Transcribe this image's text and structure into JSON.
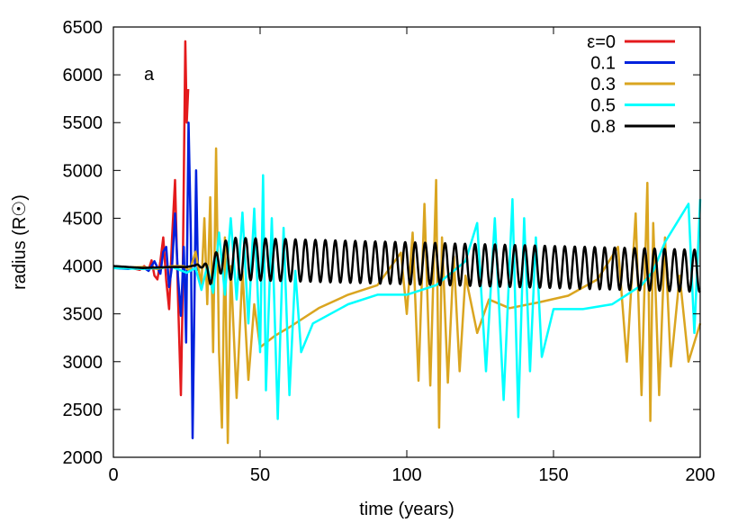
{
  "chart_data": {
    "type": "line",
    "title": "",
    "xlabel": "time (years)",
    "ylabel": "radius (R☉)",
    "xlim": [
      0,
      200
    ],
    "ylim": [
      2000,
      6500
    ],
    "xticks": [
      "0",
      "50",
      "100",
      "150",
      "200"
    ],
    "yticks": [
      "2000",
      "2500",
      "3000",
      "3500",
      "4000",
      "4500",
      "5000",
      "5500",
      "6000",
      "6500"
    ],
    "xtick_values": [
      0,
      50,
      100,
      150,
      200
    ],
    "ytick_values": [
      2000,
      2500,
      3000,
      3500,
      4000,
      4500,
      5000,
      5500,
      6000,
      6500
    ],
    "grid": false,
    "legend_position": "top-right",
    "panel_label": "a",
    "series": [
      {
        "name": "ε=0",
        "color": "#e41a1c",
        "x": [
          0,
          3,
          6,
          9,
          10.5,
          12,
          13,
          14,
          15,
          16,
          17,
          18,
          19,
          20,
          21,
          22,
          23,
          23.5,
          24,
          24.5,
          25,
          25.5
        ],
        "y": [
          3985,
          3975,
          3980,
          3960,
          4000,
          3960,
          4060,
          3900,
          3860,
          4050,
          4300,
          3850,
          3550,
          4300,
          4900,
          3700,
          2650,
          3500,
          4900,
          6350,
          5500,
          5850
        ]
      },
      {
        "name": "0.1",
        "color": "#0022dd",
        "x": [
          0,
          5,
          10,
          12,
          14,
          16,
          17,
          18,
          19,
          20,
          21,
          22,
          23,
          24,
          24.8,
          25.6,
          26.4,
          27,
          27.6,
          28.2,
          28.8
        ],
        "y": [
          3980,
          3970,
          3990,
          3950,
          4050,
          3920,
          4150,
          4200,
          3780,
          4000,
          4550,
          3900,
          3480,
          4200,
          3200,
          5500,
          4300,
          2200,
          3600,
          5000,
          3950
        ]
      },
      {
        "name": "0.3",
        "color": "#daa520",
        "x": [
          0,
          5,
          10,
          15,
          20,
          24,
          26,
          28,
          30,
          31,
          32,
          33,
          34,
          35,
          36,
          37,
          38,
          39,
          40,
          42,
          44,
          46,
          48,
          50,
          55,
          60,
          70,
          80,
          90,
          98,
          100,
          102,
          104,
          106,
          108,
          110,
          111,
          112,
          114,
          116,
          118,
          120,
          124,
          128,
          135,
          145,
          155,
          165,
          172,
          175,
          178,
          180,
          182,
          183,
          184,
          186,
          188,
          190,
          193,
          196,
          200
        ],
        "y": [
          3990,
          3985,
          3990,
          3970,
          4000,
          4000,
          3950,
          4150,
          3800,
          4500,
          3600,
          4720,
          3100,
          5230,
          3100,
          2310,
          4300,
          2150,
          4000,
          2620,
          3950,
          2810,
          3600,
          3150,
          3270,
          3360,
          3560,
          3700,
          3800,
          4140,
          3500,
          4350,
          2800,
          4650,
          2750,
          4900,
          2310,
          4300,
          2780,
          4100,
          2900,
          3900,
          3300,
          3650,
          3560,
          3620,
          3690,
          3860,
          4200,
          3000,
          4550,
          2650,
          4870,
          2380,
          4450,
          2650,
          4300,
          2950,
          3900,
          3000,
          3400
        ]
      },
      {
        "name": "0.5",
        "color": "#00ffff",
        "x": [
          0,
          10,
          20,
          25,
          28,
          30,
          32,
          34,
          36,
          38,
          40,
          42,
          44,
          46,
          48,
          50,
          51,
          52,
          54,
          56,
          58,
          60,
          62,
          64,
          68,
          74,
          80,
          90,
          100,
          110,
          120,
          124,
          127,
          130,
          133,
          136,
          138,
          140,
          142,
          144,
          146,
          150,
          160,
          170,
          175,
          180,
          184,
          188,
          192,
          196,
          198,
          200
        ],
        "y": [
          3980,
          3970,
          3990,
          3930,
          3980,
          3750,
          4000,
          3720,
          4350,
          3700,
          4500,
          3650,
          4560,
          3400,
          4600,
          3100,
          4950,
          2700,
          4500,
          2400,
          4400,
          2650,
          3950,
          3100,
          3400,
          3500,
          3600,
          3700,
          3700,
          3800,
          4050,
          4450,
          2900,
          4500,
          2600,
          4700,
          2420,
          4500,
          2900,
          4300,
          3050,
          3550,
          3550,
          3600,
          3700,
          3800,
          3950,
          4250,
          4450,
          4650,
          3300,
          4700
        ]
      },
      {
        "name": "0.8",
        "color": "#000000",
        "x": [
          0,
          10,
          20,
          25,
          30,
          33,
          36,
          200
        ],
        "y": [
          4000,
          3980,
          3990,
          3990,
          4020,
          3900,
          4080,
          3950
        ],
        "oscillation_amplitude": 220,
        "oscillation_period": 3.4
      }
    ]
  }
}
